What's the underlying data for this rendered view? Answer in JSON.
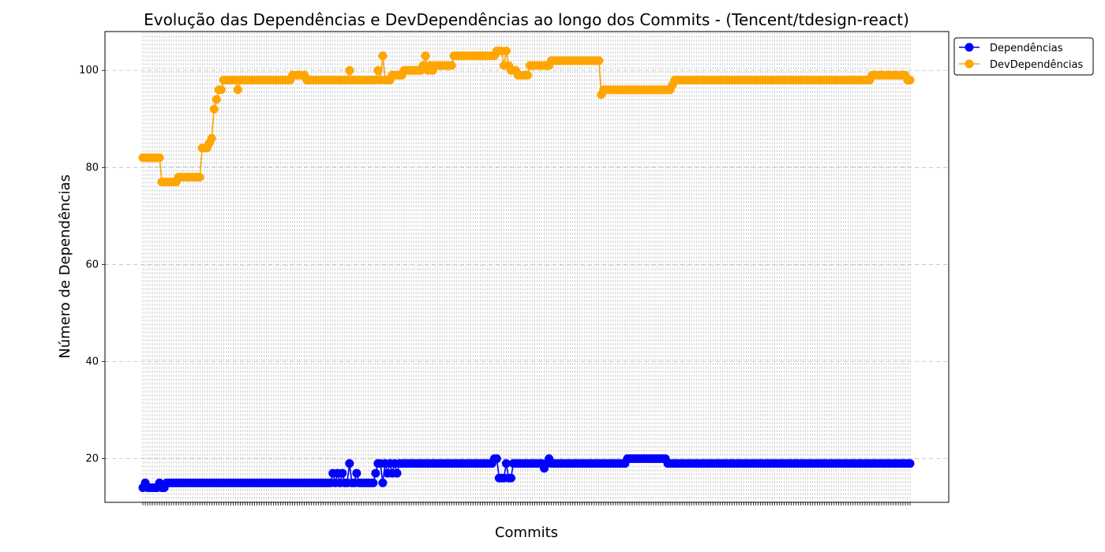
{
  "chart_data": {
    "type": "line",
    "title": "Evolução das Dependências e DevDependências ao longo dos Commits - (Tencent/tdesign-react)",
    "xlabel": "Commits",
    "ylabel": "Número de Dependências",
    "ylim": [
      11,
      108
    ],
    "yticks": [
      20,
      40,
      60,
      80,
      100
    ],
    "grid": true,
    "legend_position": "top-right outside",
    "n_commits": 324,
    "series": [
      {
        "name": "Dependências",
        "color": "#0000ff",
        "segments": [
          [
            0,
            14
          ],
          [
            1,
            15
          ],
          [
            2,
            14
          ],
          [
            6,
            14
          ],
          [
            7,
            15
          ],
          [
            8,
            14
          ],
          [
            9,
            14
          ],
          [
            10,
            15
          ],
          [
            79,
            15
          ],
          [
            80,
            17
          ],
          [
            81,
            15
          ],
          [
            82,
            17
          ],
          [
            83,
            15
          ],
          [
            84,
            17
          ],
          [
            85,
            15
          ],
          [
            87,
            19
          ],
          [
            88,
            15
          ],
          [
            90,
            17
          ],
          [
            91,
            15
          ],
          [
            98,
            17
          ],
          [
            99,
            19
          ],
          [
            101,
            15
          ],
          [
            102,
            19
          ],
          [
            103,
            17
          ],
          [
            104,
            19
          ],
          [
            105,
            17
          ],
          [
            106,
            19
          ],
          [
            107,
            17
          ],
          [
            108,
            19
          ],
          [
            147,
            19
          ],
          [
            148,
            20
          ],
          [
            149,
            20
          ],
          [
            150,
            16
          ],
          [
            155,
            16
          ],
          [
            153,
            19
          ],
          [
            154,
            16
          ],
          [
            156,
            19
          ],
          [
            168,
            19
          ],
          [
            169,
            18
          ],
          [
            170,
            19
          ],
          [
            171,
            20
          ],
          [
            172,
            19
          ],
          [
            203,
            19
          ],
          [
            204,
            20
          ],
          [
            220,
            20
          ],
          [
            221,
            19
          ],
          [
            323,
            19
          ]
        ]
      },
      {
        "name": "DevDependências",
        "color": "#ffa500",
        "segments": [
          [
            0,
            82
          ],
          [
            7,
            82
          ],
          [
            8,
            77
          ],
          [
            14,
            77
          ],
          [
            15,
            78
          ],
          [
            24,
            78
          ],
          [
            25,
            84
          ],
          [
            27,
            84
          ],
          [
            28,
            85
          ],
          [
            29,
            86
          ],
          [
            30,
            92
          ],
          [
            31,
            94
          ],
          [
            32,
            96
          ],
          [
            33,
            96
          ],
          [
            34,
            98
          ],
          [
            39,
            98
          ],
          [
            40,
            96
          ],
          [
            41,
            98
          ],
          [
            62,
            98
          ],
          [
            63,
            99
          ],
          [
            68,
            99
          ],
          [
            69,
            98
          ],
          [
            86,
            98
          ],
          [
            87,
            100
          ],
          [
            88,
            98
          ],
          [
            98,
            98
          ],
          [
            99,
            100
          ],
          [
            100,
            98
          ],
          [
            101,
            103
          ],
          [
            102,
            98
          ],
          [
            104,
            98
          ],
          [
            105,
            99
          ],
          [
            109,
            99
          ],
          [
            110,
            100
          ],
          [
            117,
            100
          ],
          [
            118,
            101
          ],
          [
            119,
            103
          ],
          [
            120,
            100
          ],
          [
            121,
            101
          ],
          [
            122,
            100
          ],
          [
            123,
            101
          ],
          [
            130,
            101
          ],
          [
            131,
            103
          ],
          [
            148,
            103
          ],
          [
            149,
            104
          ],
          [
            153,
            104
          ],
          [
            152,
            101
          ],
          [
            154,
            101
          ],
          [
            155,
            100
          ],
          [
            157,
            100
          ],
          [
            158,
            99
          ],
          [
            162,
            99
          ],
          [
            163,
            101
          ],
          [
            171,
            101
          ],
          [
            172,
            102
          ],
          [
            192,
            102
          ],
          [
            193,
            95
          ],
          [
            194,
            96
          ],
          [
            222,
            96
          ],
          [
            223,
            97
          ],
          [
            224,
            98
          ],
          [
            306,
            98
          ],
          [
            307,
            99
          ],
          [
            321,
            99
          ],
          [
            322,
            98
          ],
          [
            323,
            98
          ]
        ]
      }
    ]
  }
}
